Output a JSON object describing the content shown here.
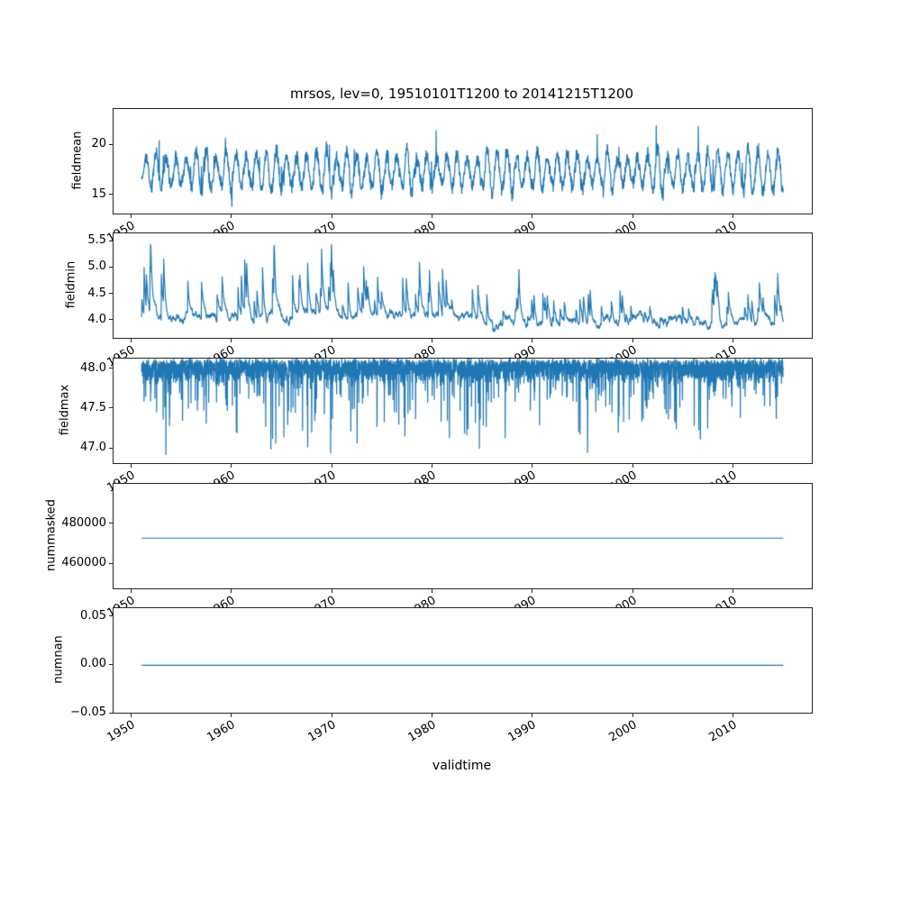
{
  "chart_data": {
    "type": "line",
    "title": "mrsos, lev=0, 19510101T1200 to 20141215T1200",
    "xlabel": "validtime",
    "grid": false,
    "legend": null,
    "line_color": "#1f77b4",
    "frame_color": "#262626",
    "x_range": [
      1951.0,
      2014.96
    ],
    "xlim": [
      1948.2,
      2017.8
    ],
    "xticks": [
      1950,
      1960,
      1970,
      1980,
      1990,
      2000,
      2010
    ],
    "xtick_labels": [
      "1950",
      "1960",
      "1970",
      "1980",
      "1990",
      "2000",
      "2010"
    ],
    "seed": 19510101,
    "panels": [
      {
        "name": "fieldmean",
        "ylabel": "fieldmean",
        "ylim": [
          13.2,
          23.6
        ],
        "yticks": [
          15,
          20
        ],
        "ytick_labels": [
          "15",
          "20"
        ],
        "approx_value_range": [
          14.0,
          23.5
        ],
        "description": "noisy annual cycle oscillating mostly between 15 and 20 with peaks near 23",
        "series": {
          "kind": "seasonal",
          "n": 2304,
          "base": 17.4,
          "amp": 1.8,
          "noise": 0.9,
          "peak": 3.2,
          "min": 13.9,
          "max": 23.5
        }
      },
      {
        "name": "fieldmin",
        "ylabel": "fieldmin",
        "ylim": [
          3.67,
          5.66
        ],
        "yticks": [
          4.0,
          4.5,
          5.0,
          5.5
        ],
        "ytick_labels": [
          "4.0",
          "4.5",
          "5.0",
          "5.5"
        ],
        "approx_value_range": [
          3.7,
          5.45
        ],
        "description": "baseline near 4.0-4.2 with upward spikes to 5.0-5.45 before ~1986, smaller spikes after",
        "series": {
          "kind": "spiky_up",
          "n": 2304,
          "base": 4.02,
          "noise": 0.045,
          "rate": 0.05,
          "amp": 0.85,
          "decay": 0.85,
          "env_break": 1986,
          "min": 3.7,
          "max": 5.45
        }
      },
      {
        "name": "fieldmax",
        "ylabel": "fieldmax",
        "ylim": [
          46.82,
          48.13
        ],
        "yticks": [
          47.0,
          47.5,
          48.0
        ],
        "ytick_labels": [
          "47.0",
          "47.5",
          "48.0"
        ],
        "approx_value_range": [
          46.7,
          48.15
        ],
        "description": "dense band near 48.0-48.15 with frequent downward spikes to 46.7-47.5",
        "series": {
          "kind": "spiky_down",
          "n": 4200,
          "base": 48.08,
          "noise": 0.3,
          "rate": 0.12,
          "amp": 1.1,
          "min": 46.7,
          "max": 48.16
        }
      },
      {
        "name": "nummasked",
        "ylabel": "nummasked",
        "ylim": [
          448000,
          500000
        ],
        "yticks": [
          460000,
          480000
        ],
        "ytick_labels": [
          "460000",
          "480000"
        ],
        "approx_value_range": [
          473000,
          473000
        ],
        "description": "constant line at about 473000",
        "series": {
          "kind": "constant",
          "value": 473000
        }
      },
      {
        "name": "numnan",
        "ylabel": "numnan",
        "ylim": [
          -0.049,
          0.059
        ],
        "yticks": [
          -0.05,
          0.0,
          0.05
        ],
        "ytick_labels": [
          "−0.05",
          "0.00",
          "0.05"
        ],
        "approx_value_range": [
          0,
          0
        ],
        "description": "constant line at 0.00",
        "series": {
          "kind": "constant",
          "value": 0.0
        }
      }
    ]
  }
}
